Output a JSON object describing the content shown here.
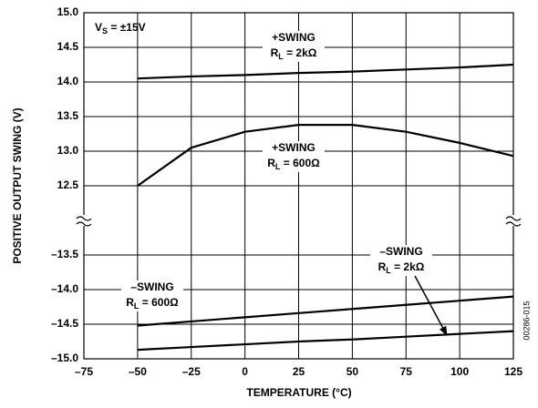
{
  "chart_data": {
    "type": "line",
    "x_label": "TEMPERATURE (°C)",
    "y_label": "POSITIVE OUTPUT SWING (V)",
    "annotation": {
      "main": "V",
      "sub": "S",
      "text": " = ±15V"
    },
    "figure_id": "00286-015",
    "xlim": [
      -75,
      125
    ],
    "xticks": [
      {
        "value": -75,
        "label": "–75"
      },
      {
        "value": -50,
        "label": "–50"
      },
      {
        "value": -25,
        "label": "–25"
      },
      0,
      25,
      50,
      75,
      100,
      125
    ],
    "ylim": [
      12,
      15
    ],
    "yticks": [
      {
        "value": 15,
        "label": "15.0"
      },
      14.5,
      {
        "value": 14,
        "label": "14.0"
      },
      13.5,
      {
        "value": 13,
        "label": "13.0"
      },
      12.5
    ],
    "y2lim": [
      -15,
      -13
    ],
    "y2ticks": [
      {
        "value": -13.5,
        "label": "–13.5"
      },
      {
        "value": -14,
        "label": "–14.0"
      },
      {
        "value": -14.5,
        "label": "–14.5"
      },
      {
        "value": -15,
        "label": "–15.0"
      }
    ],
    "grid": true,
    "x": [
      -50,
      -25,
      0,
      25,
      50,
      75,
      100,
      125
    ],
    "series": [
      {
        "name": "+SWING",
        "load": {
          "main": "R",
          "sub": "L",
          "text": " = 2kΩ"
        },
        "color": "#000000",
        "values": [
          14.05,
          14.08,
          14.1,
          14.13,
          14.15,
          14.18,
          14.21,
          14.25
        ]
      },
      {
        "name": "+SWING",
        "load": {
          "main": "R",
          "sub": "L",
          "text": " = 600Ω"
        },
        "color": "#000000",
        "values": [
          12.5,
          13.05,
          13.28,
          13.38,
          13.38,
          13.28,
          13.12,
          12.93
        ]
      },
      {
        "name": "–SWING",
        "load": {
          "main": "R",
          "sub": "L",
          "text": " = 2kΩ"
        },
        "color": "#000000",
        "axis": "y2",
        "values": [
          -14.87,
          -14.83,
          -14.79,
          -14.75,
          -14.72,
          -14.68,
          -14.64,
          -14.6
        ]
      },
      {
        "name": "–SWING",
        "load": {
          "main": "R",
          "sub": "L",
          "text": " = 600Ω"
        },
        "color": "#000000",
        "axis": "y2",
        "values": [
          -14.52,
          -14.46,
          -14.4,
          -14.34,
          -14.28,
          -14.22,
          -14.16,
          -14.1
        ]
      }
    ]
  }
}
